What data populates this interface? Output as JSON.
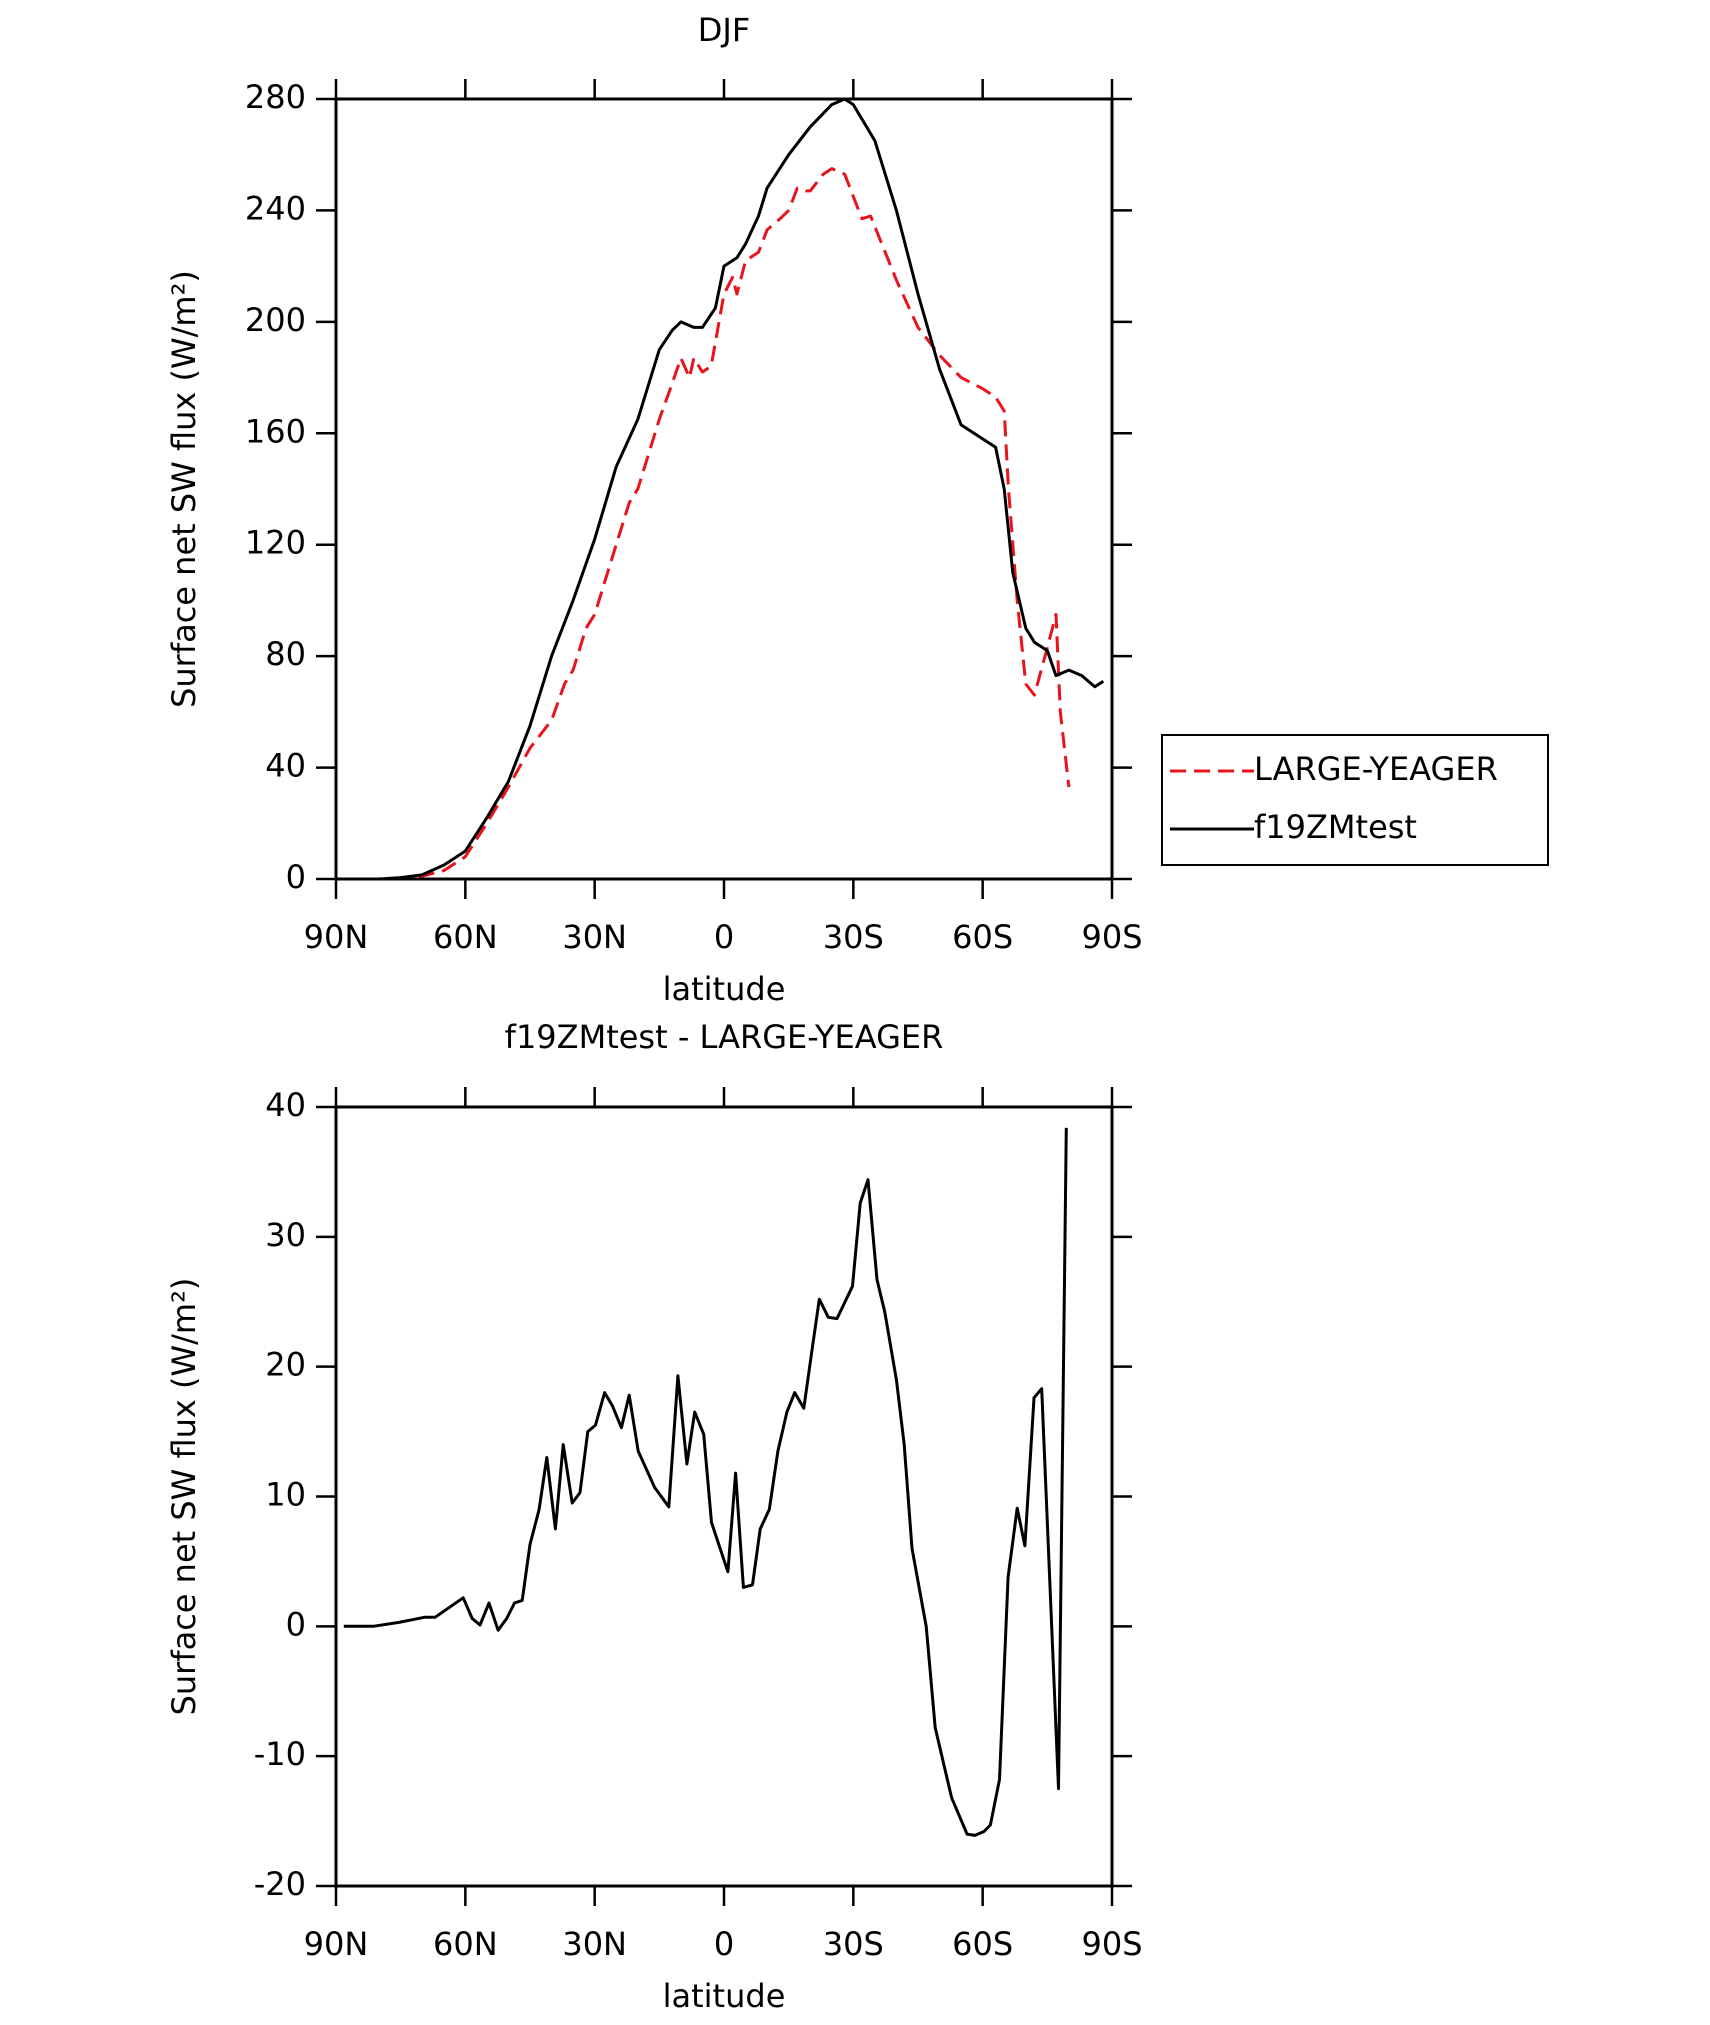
{
  "chart_data": [
    {
      "type": "line",
      "title": "DJF",
      "xlabel": "latitude",
      "ylabel": "Surface net SW flux (W/m²)",
      "xlim": [
        90,
        -90
      ],
      "ylim": [
        0,
        280
      ],
      "xticks": [
        {
          "value": 90,
          "label": "90N"
        },
        {
          "value": 60,
          "label": "60N"
        },
        {
          "value": 30,
          "label": "30N"
        },
        0,
        {
          "value": -30,
          "label": "30S"
        },
        {
          "value": -60,
          "label": "60S"
        },
        {
          "value": -90,
          "label": "90S"
        }
      ],
      "yticks": [
        0,
        40,
        80,
        120,
        160,
        200,
        240,
        280
      ],
      "legend": "outside-right",
      "series": [
        {
          "name": "LARGE-YEAGER",
          "color": "#e8141b",
          "dash": true,
          "x": [
            87.5,
            80,
            75,
            70,
            65,
            60,
            55,
            50,
            45,
            40,
            37,
            35,
            32,
            30,
            25,
            22,
            20,
            15,
            12,
            10,
            8,
            7,
            5,
            3,
            0,
            -2,
            -3,
            -5,
            -8,
            -10,
            -13,
            -15,
            -17,
            -19,
            -20,
            -23,
            -25,
            -28,
            -30,
            -32,
            -34,
            -40,
            -45,
            -50,
            -55,
            -60,
            -63,
            -65,
            -66,
            -68,
            -70,
            -72,
            -75,
            -77,
            -78,
            -80
          ],
          "values": [
            0,
            0,
            0,
            1,
            3,
            8,
            20,
            33,
            47,
            57,
            70,
            75,
            90,
            95,
            120,
            135,
            140,
            165,
            178,
            187,
            180,
            187,
            182,
            184,
            210,
            216,
            210,
            222,
            225,
            233,
            237,
            240,
            248,
            247,
            247,
            253,
            255,
            253,
            245,
            237,
            238,
            215,
            198,
            188,
            180,
            176,
            173,
            168,
            140,
            100,
            70,
            66,
            83,
            95,
            60,
            33
          ]
        },
        {
          "name": "f19ZMtest",
          "color": "#000000",
          "dash": false,
          "x": [
            87.5,
            80,
            75,
            70,
            65,
            60,
            55,
            50,
            45,
            40,
            35,
            30,
            25,
            20,
            15,
            12,
            10,
            7,
            5,
            2,
            0,
            -3,
            -5,
            -8,
            -10,
            -15,
            -20,
            -25,
            -28,
            -30,
            -35,
            -40,
            -45,
            -50,
            -55,
            -60,
            -63,
            -65,
            -67,
            -70,
            -72,
            -75,
            -77,
            -80,
            -83,
            -86,
            -88
          ],
          "values": [
            0,
            0,
            0.5,
            1.5,
            5,
            10,
            22,
            35,
            55,
            80,
            100,
            122,
            148,
            165,
            190,
            197,
            200,
            198,
            198,
            205,
            220,
            223,
            228,
            238,
            248,
            260,
            270,
            278,
            280,
            278,
            265,
            240,
            210,
            183,
            163,
            158,
            155,
            140,
            110,
            90,
            85,
            82,
            73,
            75,
            73,
            69,
            71
          ]
        }
      ]
    },
    {
      "type": "line",
      "title": "f19ZMtest - LARGE-YEAGER",
      "xlabel": "latitude",
      "ylabel": "Surface net SW flux (W/m²)",
      "xlim": [
        90,
        -90
      ],
      "ylim": [
        -20,
        40
      ],
      "xticks": [
        {
          "value": 90,
          "label": "90N"
        },
        {
          "value": 60,
          "label": "60N"
        },
        {
          "value": 30,
          "label": "30N"
        },
        0,
        {
          "value": -30,
          "label": "30S"
        },
        {
          "value": -60,
          "label": "60S"
        },
        {
          "value": -90,
          "label": "90S"
        }
      ],
      "yticks": [
        -20,
        -10,
        0,
        10,
        20,
        30,
        40
      ],
      "series": [
        {
          "color": "#000000",
          "dash": false,
          "x": [
            88.2,
            81.4,
            75.4,
            72.4,
            69.4,
            67,
            60.5,
            58.4,
            56.6,
            54.5,
            52.4,
            50.4,
            48.6,
            46.8,
            45,
            42.9,
            41.1,
            39.1,
            37.3,
            35.2,
            33.4,
            31.6,
            29.8,
            27.7,
            25.9,
            23.8,
            22,
            19.9,
            16.1,
            12.8,
            10.7,
            8.6,
            6.8,
            4.7,
            2.9,
            -0.9,
            -2.7,
            -4.5,
            -6.6,
            -8.4,
            -10.5,
            -12.5,
            -14.6,
            -16.4,
            -18.5,
            -20.3,
            -22.1,
            -24.2,
            -26.2,
            -29.8,
            -31.6,
            -33.4,
            -35.5,
            -37.3,
            -40,
            -41.8,
            -43.6,
            -46.9,
            -49,
            -52.8,
            -56.4,
            -58.2,
            -60.3,
            -61.8,
            -63.9,
            -65.9,
            -68,
            -69.8,
            -71.9,
            -73.7,
            -77.6,
            -79.4
          ],
          "values": [
            0,
            0,
            0.3,
            0.5,
            0.7,
            0.7,
            2.2,
            0.6,
            0.1,
            1.8,
            -0.3,
            0.6,
            1.8,
            2,
            6.3,
            9,
            13,
            7.5,
            14,
            9.5,
            10.3,
            15,
            15.5,
            18,
            17,
            15.3,
            17.8,
            13.5,
            10.7,
            9.2,
            19.3,
            12.5,
            16.5,
            14.8,
            8,
            4.2,
            11.8,
            3,
            3.2,
            7.5,
            9,
            13.5,
            16.5,
            18,
            16.8,
            21,
            25.2,
            23.8,
            23.7,
            26.2,
            32.6,
            34.4,
            26.7,
            24.2,
            19,
            14,
            6,
            0,
            -7.8,
            -13.2,
            -16,
            -16.1,
            -15.8,
            -15.3,
            -11.8,
            3.8,
            9.1,
            6.2,
            17.6,
            18.3,
            -12.5,
            38.4
          ]
        }
      ]
    }
  ]
}
